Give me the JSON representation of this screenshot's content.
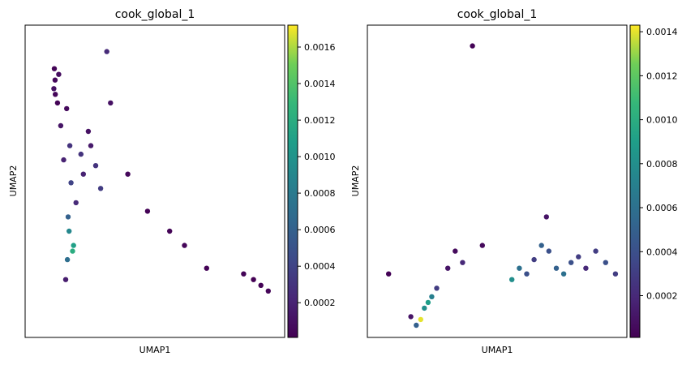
{
  "chart_data": [
    {
      "type": "scatter",
      "title": "cook_global_1",
      "xlabel": "UMAP1",
      "ylabel": "UMAP2",
      "xticks": [],
      "yticks": [],
      "colorbar": {
        "colormap": "viridis",
        "range": [
          1e-05,
          0.00172
        ],
        "ticks": [
          "0.0002",
          "0.0004",
          "0.0006",
          "0.0008",
          "0.0010",
          "0.0012",
          "0.0014",
          "0.0016"
        ],
        "tick_values": [
          0.0002,
          0.0004,
          0.0006,
          0.0008,
          0.001,
          0.0012,
          0.0014,
          0.0016
        ]
      },
      "points": [
        [
          0.92,
          0.92,
          3e-05
        ],
        [
          0.95,
          0.88,
          5e-05
        ],
        [
          0.9,
          0.85,
          0.0001
        ],
        [
          0.96,
          0.83,
          4e-05
        ],
        [
          1.1,
          0.9,
          8e-05
        ],
        [
          1.05,
          0.8,
          2e-05
        ],
        [
          1.18,
          0.72,
          0.00012
        ],
        [
          1.3,
          0.6,
          0.0002
        ],
        [
          1.42,
          0.78,
          6e-05
        ],
        [
          1.55,
          0.65,
          0.0003
        ],
        [
          1.6,
          0.52,
          0.0004
        ],
        [
          1.48,
          0.4,
          0.0006
        ],
        [
          1.52,
          0.35,
          0.0009
        ],
        [
          1.66,
          0.28,
          0.0012
        ],
        [
          1.7,
          0.3,
          0.0011
        ],
        [
          1.45,
          0.25,
          0.0007
        ],
        [
          1.38,
          0.18,
          0.00017
        ],
        [
          1.8,
          0.45,
          0.00025
        ],
        [
          2.0,
          0.62,
          0.0003
        ],
        [
          2.1,
          0.55,
          0.0002
        ],
        [
          2.3,
          0.7,
          0.0001
        ],
        [
          2.4,
          0.65,
          0.00015
        ],
        [
          2.6,
          0.58,
          0.0003
        ],
        [
          2.8,
          0.5,
          0.00035
        ],
        [
          3.05,
          0.98,
          0.00025
        ],
        [
          3.2,
          0.8,
          0.0001
        ],
        [
          3.9,
          0.55,
          5e-05
        ],
        [
          4.7,
          0.42,
          2e-05
        ],
        [
          5.6,
          0.35,
          3e-05
        ],
        [
          6.2,
          0.3,
          4e-05
        ],
        [
          7.1,
          0.22,
          2e-05
        ],
        [
          8.6,
          0.2,
          3e-05
        ],
        [
          9.0,
          0.18,
          1e-05
        ],
        [
          9.3,
          0.16,
          2e-05
        ],
        [
          9.6,
          0.14,
          4e-05
        ]
      ]
    },
    {
      "type": "scatter",
      "title": "cook_global_1",
      "xlabel": "UMAP1",
      "ylabel": "UMAP2",
      "xticks": [],
      "yticks": [],
      "colorbar": {
        "colormap": "viridis",
        "range": [
          1e-05,
          0.00143
        ],
        "ticks": [
          "0.0002",
          "0.0004",
          "0.0006",
          "0.0008",
          "0.0010",
          "0.0012",
          "0.0014"
        ],
        "tick_values": [
          0.0002,
          0.0004,
          0.0006,
          0.0008,
          0.001,
          0.0012,
          0.0014
        ]
      },
      "points": [
        [
          0.6,
          0.2,
          2e-05
        ],
        [
          1.5,
          0.05,
          0.0001
        ],
        [
          1.72,
          0.02,
          0.0005
        ],
        [
          1.9,
          0.04,
          0.0014
        ],
        [
          2.05,
          0.08,
          0.0008
        ],
        [
          2.2,
          0.1,
          0.0009
        ],
        [
          2.35,
          0.12,
          0.0007
        ],
        [
          2.55,
          0.15,
          0.0003
        ],
        [
          3.0,
          0.22,
          0.0001
        ],
        [
          3.3,
          0.28,
          5e-05
        ],
        [
          3.6,
          0.24,
          0.0002
        ],
        [
          4.4,
          0.3,
          5e-05
        ],
        [
          5.6,
          0.18,
          0.0008
        ],
        [
          5.9,
          0.22,
          0.0006
        ],
        [
          6.2,
          0.2,
          0.0004
        ],
        [
          6.5,
          0.25,
          0.0003
        ],
        [
          6.8,
          0.3,
          0.0005
        ],
        [
          7.1,
          0.28,
          0.0004
        ],
        [
          7.4,
          0.22,
          0.0005
        ],
        [
          7.7,
          0.2,
          0.0006
        ],
        [
          8.0,
          0.24,
          0.0004
        ],
        [
          8.3,
          0.26,
          0.0003
        ],
        [
          8.6,
          0.22,
          0.0002
        ],
        [
          9.0,
          0.28,
          0.0003
        ],
        [
          9.4,
          0.24,
          0.0004
        ],
        [
          9.8,
          0.2,
          0.0003
        ],
        [
          4.0,
          1.0,
          2e-05
        ],
        [
          7.0,
          0.4,
          0.0001
        ]
      ]
    }
  ]
}
